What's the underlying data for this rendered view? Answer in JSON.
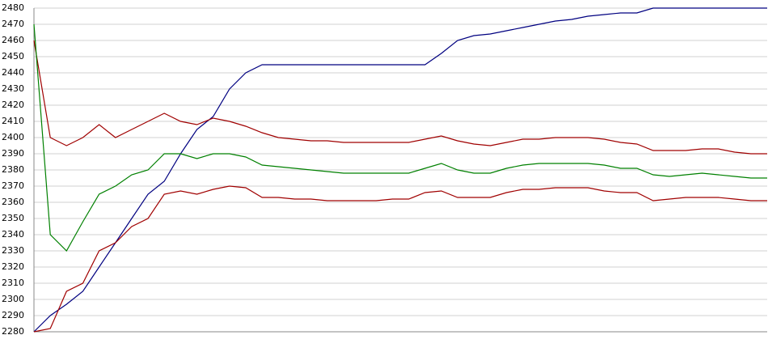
{
  "chart_data": {
    "type": "line",
    "categories": [
      null,
      null,
      null,
      null,
      null,
      null,
      null,
      null,
      null,
      null,
      null,
      null,
      null,
      null,
      null,
      null,
      null,
      null,
      null,
      null,
      null,
      null,
      null,
      null,
      null,
      null,
      null,
      null,
      null,
      null,
      null,
      null,
      null,
      null,
      null,
      null,
      null,
      null,
      null,
      null,
      null,
      null,
      null,
      null,
      null,
      null
    ],
    "series": [
      {
        "color": "#000080",
        "values": [
          2280,
          2290,
          2297,
          2305,
          2320,
          2335,
          2350,
          2365,
          2373,
          2390,
          2405,
          2413,
          2430,
          2440,
          2445,
          2445,
          2445,
          2445,
          2445,
          2445,
          2445,
          2445,
          2445,
          2445,
          2445,
          2452,
          2460,
          2463,
          2464,
          2466,
          2468,
          2470,
          2472,
          2473,
          2475,
          2476,
          2477,
          2477,
          2480,
          2480,
          2480,
          2480,
          2480,
          2480,
          2480,
          2480
        ]
      },
      {
        "color": "#a00000",
        "values": [
          2460,
          2400,
          2395,
          2400,
          2408,
          2400,
          2405,
          2410,
          2415,
          2410,
          2408,
          2412,
          2410,
          2407,
          2403,
          2400,
          2399,
          2398,
          2398,
          2397,
          2397,
          2397,
          2397,
          2397,
          2399,
          2401,
          2398,
          2396,
          2395,
          2397,
          2399,
          2399,
          2400,
          2400,
          2400,
          2399,
          2397,
          2396,
          2392,
          2392,
          2392,
          2393,
          2393,
          2391,
          2390,
          2390
        ]
      },
      {
        "color": "#008000",
        "values": [
          2470,
          2340,
          2330,
          2348,
          2365,
          2370,
          2377,
          2380,
          2390,
          2390,
          2387,
          2390,
          2390,
          2388,
          2383,
          2382,
          2381,
          2380,
          2379,
          2378,
          2378,
          2378,
          2378,
          2378,
          2381,
          2384,
          2380,
          2378,
          2378,
          2381,
          2383,
          2384,
          2384,
          2384,
          2384,
          2383,
          2381,
          2381,
          2377,
          2376,
          2377,
          2378,
          2377,
          2376,
          2375,
          2375
        ]
      },
      {
        "color": "#a00000",
        "values": [
          2280,
          2282,
          2305,
          2310,
          2330,
          2335,
          2345,
          2350,
          2365,
          2367,
          2365,
          2368,
          2370,
          2369,
          2363,
          2363,
          2362,
          2362,
          2361,
          2361,
          2361,
          2361,
          2362,
          2362,
          2366,
          2367,
          2363,
          2363,
          2363,
          2366,
          2368,
          2368,
          2369,
          2369,
          2369,
          2367,
          2366,
          2366,
          2361,
          2362,
          2363,
          2363,
          2363,
          2362,
          2361,
          2361
        ]
      }
    ],
    "ylim": [
      2280,
      2480
    ],
    "yticks": [
      2280,
      2290,
      2300,
      2310,
      2320,
      2330,
      2340,
      2350,
      2360,
      2370,
      2380,
      2390,
      2400,
      2410,
      2420,
      2430,
      2440,
      2450,
      2460,
      2470,
      2480
    ],
    "grid": true
  }
}
